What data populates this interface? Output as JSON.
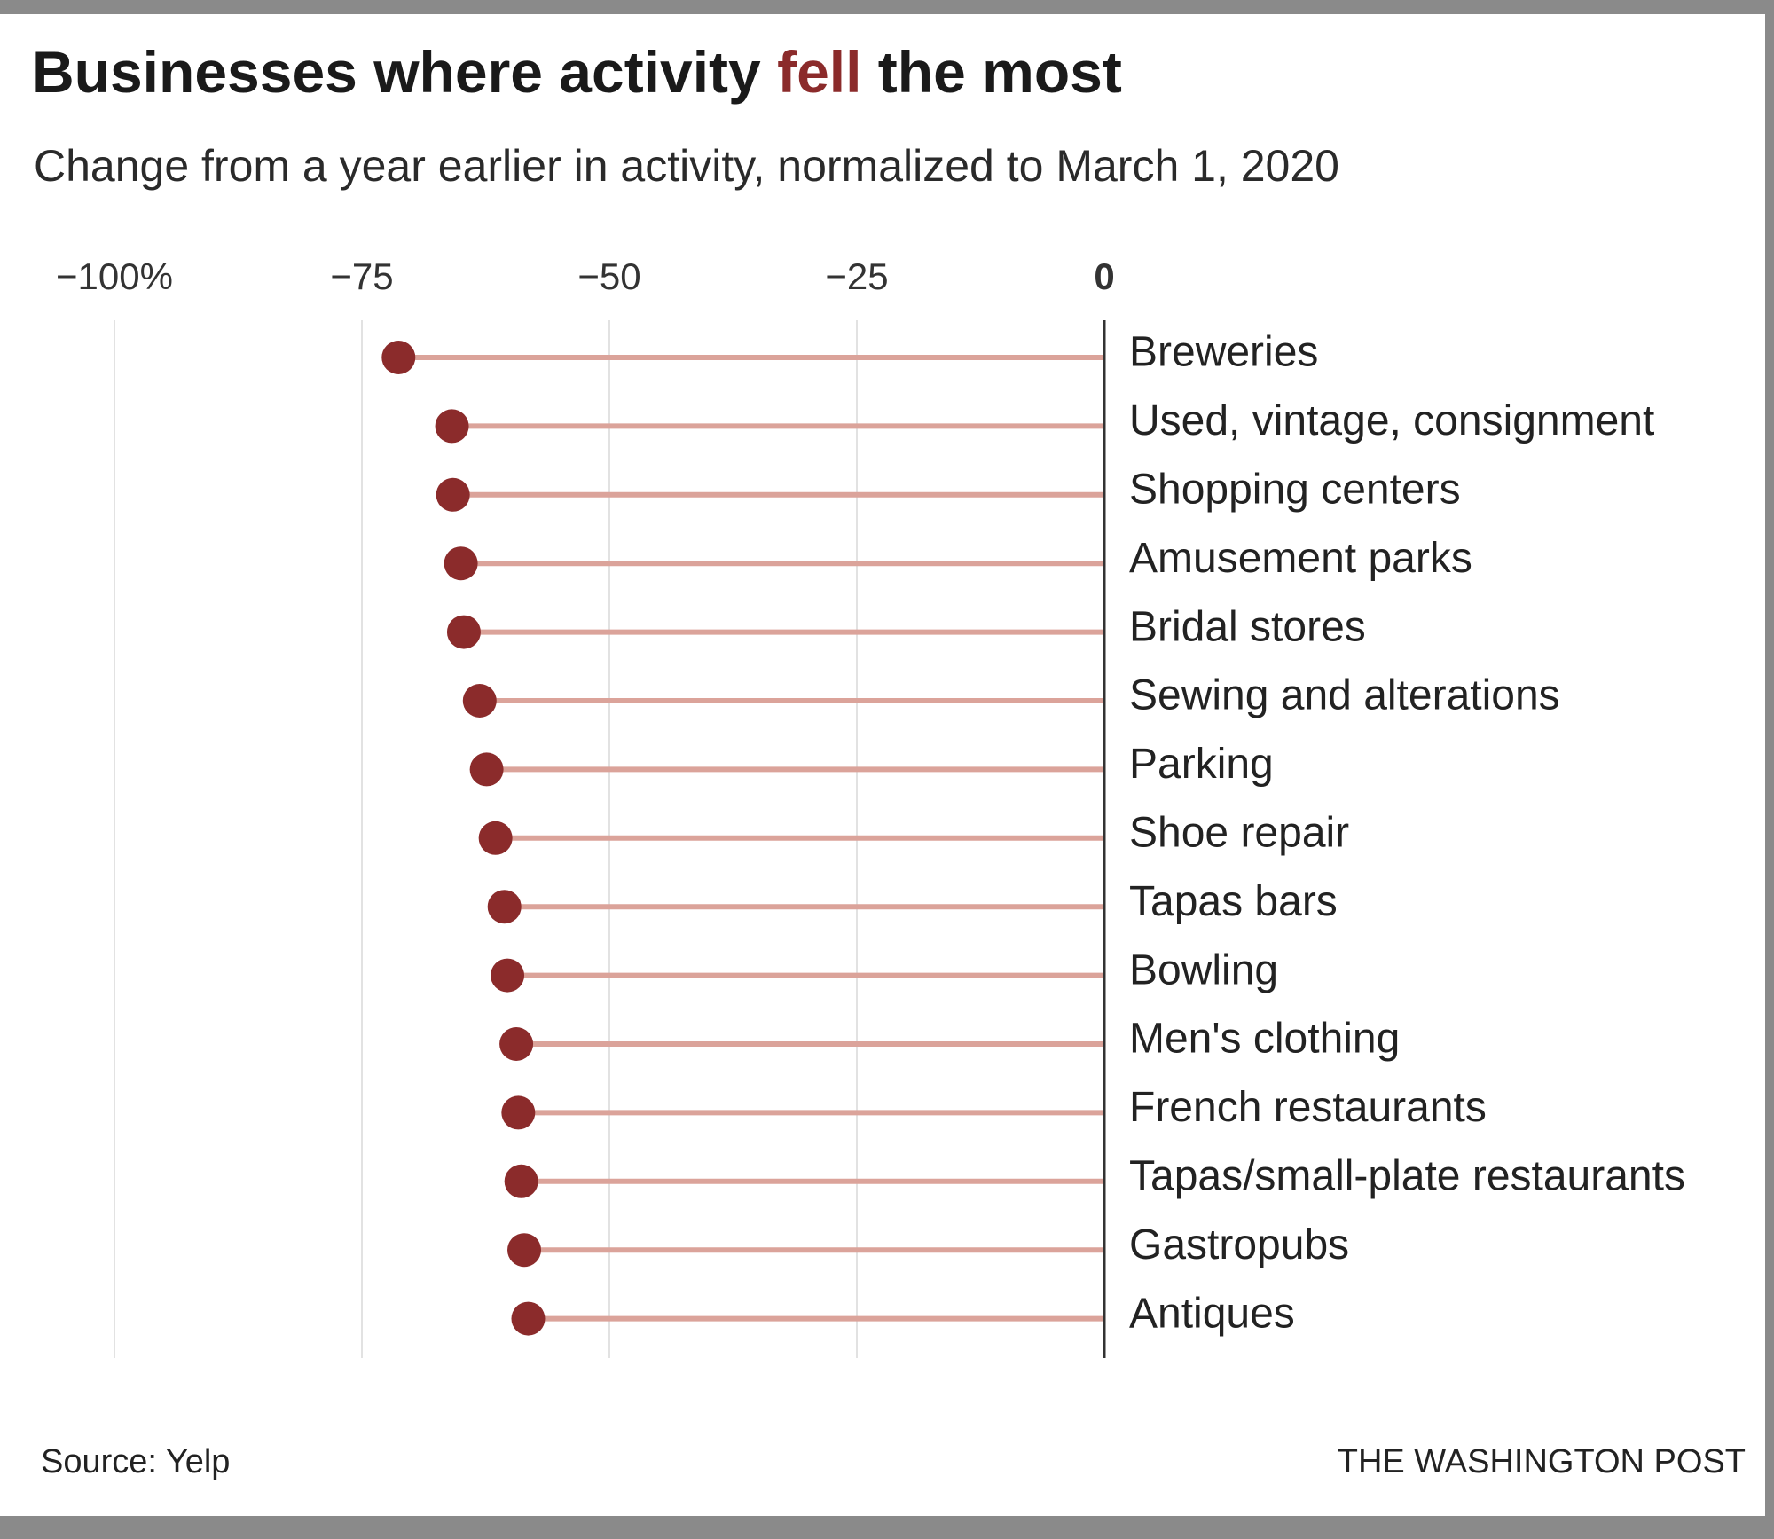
{
  "chart_data": {
    "type": "lollipop",
    "title": {
      "before": "Businesses where activity",
      "highlight": "fell",
      "after": "the most"
    },
    "subtitle": "Change from a year earlier in activity, normalized to March 1, 2020",
    "source": "Source: Yelp",
    "credit": "THE WASHINGTON POST",
    "categories": [
      "Breweries",
      "Used, vintage, consignment",
      "Shopping centers",
      "Amusement parks",
      "Bridal stores",
      "Sewing and alterations",
      "Parking",
      "Shoe repair",
      "Tapas bars",
      "Bowling",
      "Men's clothing",
      "French restaurants",
      "Tapas/small-plate restaurants",
      "Gastropubs",
      "Antiques"
    ],
    "values": [
      -71.3,
      -65.9,
      -65.8,
      -65.0,
      -64.7,
      -63.1,
      -62.4,
      -61.5,
      -60.6,
      -60.3,
      -59.4,
      -59.2,
      -58.9,
      -58.6,
      -58.2
    ],
    "color": "#8b2b2b",
    "stem_color": "#dba39a",
    "xlim": [
      -100,
      0
    ],
    "xticks": [
      {
        "value": -100,
        "label": "−100%"
      },
      {
        "value": -75,
        "label": "−75"
      },
      {
        "value": -50,
        "label": "−50"
      },
      {
        "value": -25,
        "label": "−25"
      },
      0
    ],
    "grid": true
  }
}
